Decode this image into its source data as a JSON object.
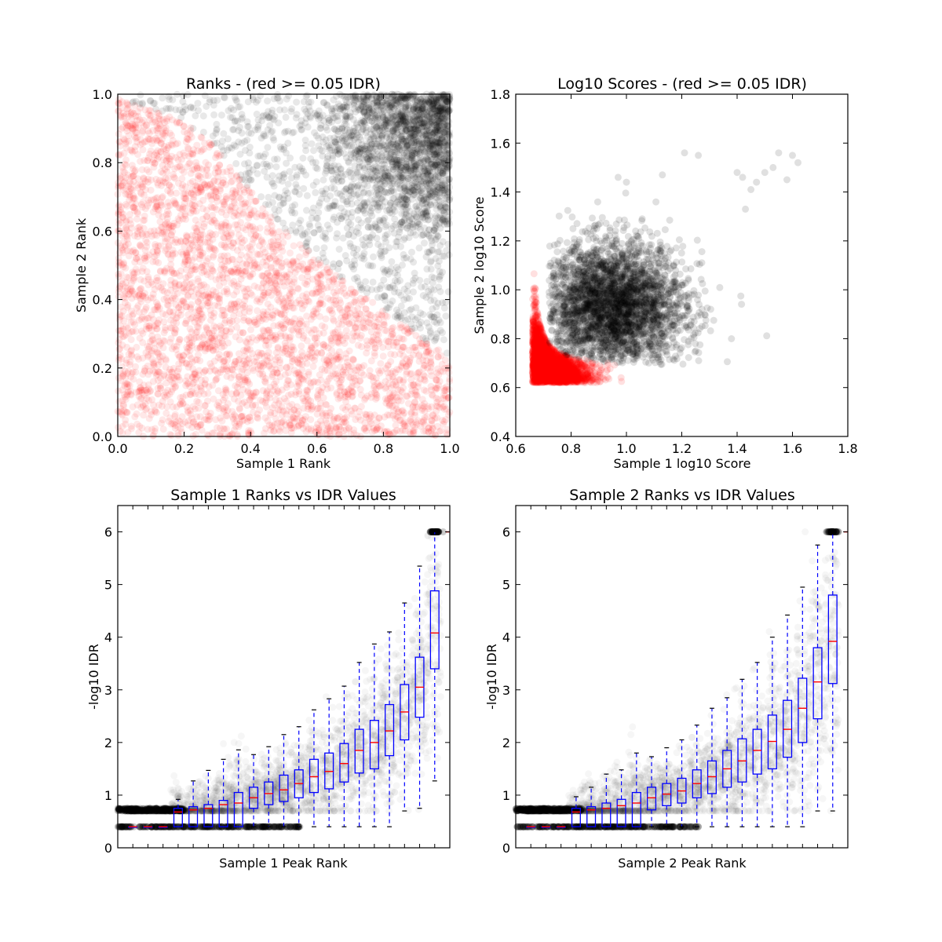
{
  "chart_data": [
    {
      "type": "scatter",
      "title": "Ranks - (red >= 0.05 IDR)",
      "xlabel": "Sample 1 Rank",
      "ylabel": "Sample 2 Rank",
      "xlim": [
        0.0,
        1.0
      ],
      "ylim": [
        0.0,
        1.0
      ],
      "xticks": [
        "0.0",
        "0.2",
        "0.4",
        "0.6",
        "0.8",
        "1.0"
      ],
      "yticks": [
        "0.0",
        "0.2",
        "0.4",
        "0.6",
        "0.8",
        "1.0"
      ],
      "colors": {
        "pass": "#ff0000",
        "fail": "#000000"
      },
      "boundary": [
        [
          0.0,
          0.99
        ],
        [
          0.2,
          0.92
        ],
        [
          0.3,
          0.84
        ],
        [
          0.4,
          0.72
        ],
        [
          0.5,
          0.61
        ],
        [
          0.6,
          0.52
        ],
        [
          0.7,
          0.44
        ],
        [
          0.8,
          0.37
        ],
        [
          0.9,
          0.3
        ],
        [
          1.0,
          0.23
        ]
      ],
      "grid": false
    },
    {
      "type": "scatter",
      "title": "Log10 Scores - (red >= 0.05 IDR)",
      "xlabel": "Sample 1 log10 Score",
      "ylabel": "Sample 2 log10 Score",
      "xlim": [
        0.6,
        1.8
      ],
      "ylim": [
        0.4,
        1.8
      ],
      "xticks": [
        "0.6",
        "0.8",
        "1.0",
        "1.2",
        "1.4",
        "1.6",
        "1.8"
      ],
      "yticks": [
        "0.4",
        "0.6",
        "0.8",
        "1.0",
        "1.2",
        "1.4",
        "1.6",
        "1.8"
      ],
      "colors": {
        "pass": "#ff0000",
        "fail": "#000000"
      },
      "outliers": [
        [
          1.21,
          1.56
        ],
        [
          1.26,
          1.55
        ],
        [
          1.42,
          1.46
        ],
        [
          1.45,
          1.41
        ],
        [
          1.47,
          1.44
        ],
        [
          1.5,
          1.48
        ],
        [
          1.53,
          1.5
        ],
        [
          1.55,
          1.56
        ],
        [
          1.58,
          1.45
        ],
        [
          1.6,
          1.55
        ],
        [
          1.62,
          1.52
        ],
        [
          1.43,
          1.33
        ],
        [
          1.4,
          1.48
        ],
        [
          1.0,
          1.44
        ],
        [
          1.13,
          1.47
        ],
        [
          0.97,
          1.46
        ]
      ],
      "grid": false
    },
    {
      "type": "box",
      "title": "Sample 1 Ranks vs IDR Values",
      "xlabel": "Sample 1 Peak Rank",
      "ylabel": "-log10 IDR",
      "ylim": [
        0,
        6.5
      ],
      "yticks": [
        "0",
        "1",
        "2",
        "3",
        "4",
        "5",
        "6"
      ],
      "colors": {
        "box": "#0000ff",
        "median": "#ff0000",
        "points": "#000000"
      },
      "boxes": [
        {
          "q1": 0.4,
          "med": 0.4,
          "q3": 0.4,
          "lo": 0.4,
          "hi": 0.4
        },
        {
          "q1": 0.4,
          "med": 0.4,
          "q3": 0.4,
          "lo": 0.4,
          "hi": 0.4
        },
        {
          "q1": 0.4,
          "med": 0.4,
          "q3": 0.4,
          "lo": 0.4,
          "hi": 0.4
        },
        {
          "q1": 0.4,
          "med": 0.68,
          "q3": 0.75,
          "lo": 0.4,
          "hi": 0.92
        },
        {
          "q1": 0.4,
          "med": 0.72,
          "q3": 0.78,
          "lo": 0.4,
          "hi": 1.27
        },
        {
          "q1": 0.4,
          "med": 0.75,
          "q3": 0.82,
          "lo": 0.4,
          "hi": 1.47
        },
        {
          "q1": 0.4,
          "med": 0.82,
          "q3": 0.9,
          "lo": 0.4,
          "hi": 1.68
        },
        {
          "q1": 0.4,
          "med": 0.85,
          "q3": 1.05,
          "lo": 0.4,
          "hi": 1.86
        },
        {
          "q1": 0.75,
          "med": 0.95,
          "q3": 1.15,
          "lo": 0.4,
          "hi": 1.77
        },
        {
          "q1": 0.82,
          "med": 1.03,
          "q3": 1.25,
          "lo": 0.4,
          "hi": 1.92
        },
        {
          "q1": 0.88,
          "med": 1.1,
          "q3": 1.38,
          "lo": 0.4,
          "hi": 2.15
        },
        {
          "q1": 0.95,
          "med": 1.22,
          "q3": 1.48,
          "lo": 0.4,
          "hi": 2.3
        },
        {
          "q1": 1.05,
          "med": 1.35,
          "q3": 1.68,
          "lo": 0.4,
          "hi": 2.62
        },
        {
          "q1": 1.12,
          "med": 1.45,
          "q3": 1.8,
          "lo": 0.4,
          "hi": 2.83
        },
        {
          "q1": 1.25,
          "med": 1.6,
          "q3": 1.98,
          "lo": 0.4,
          "hi": 3.07
        },
        {
          "q1": 1.42,
          "med": 1.85,
          "q3": 2.25,
          "lo": 0.4,
          "hi": 3.52
        },
        {
          "q1": 1.5,
          "med": 2.0,
          "q3": 2.42,
          "lo": 0.4,
          "hi": 3.87
        },
        {
          "q1": 1.75,
          "med": 2.22,
          "q3": 2.72,
          "lo": 0.4,
          "hi": 4.1
        },
        {
          "q1": 2.05,
          "med": 2.58,
          "q3": 3.1,
          "lo": 0.7,
          "hi": 4.65
        },
        {
          "q1": 2.48,
          "med": 3.05,
          "q3": 3.62,
          "lo": 0.75,
          "hi": 5.35
        },
        {
          "q1": 3.4,
          "med": 4.08,
          "q3": 4.88,
          "lo": 1.27,
          "hi": 6.0
        }
      ],
      "grid": false
    },
    {
      "type": "box",
      "title": "Sample 2 Ranks vs IDR Values",
      "xlabel": "Sample 2 Peak Rank",
      "ylabel": "-log10 IDR",
      "ylim": [
        0,
        6.5
      ],
      "yticks": [
        "0",
        "1",
        "2",
        "3",
        "4",
        "5",
        "6"
      ],
      "colors": {
        "box": "#0000ff",
        "median": "#ff0000",
        "points": "#000000"
      },
      "boxes": [
        {
          "q1": 0.4,
          "med": 0.4,
          "q3": 0.4,
          "lo": 0.4,
          "hi": 0.4
        },
        {
          "q1": 0.4,
          "med": 0.4,
          "q3": 0.4,
          "lo": 0.4,
          "hi": 0.4
        },
        {
          "q1": 0.4,
          "med": 0.4,
          "q3": 0.4,
          "lo": 0.4,
          "hi": 0.4
        },
        {
          "q1": 0.4,
          "med": 0.68,
          "q3": 0.75,
          "lo": 0.4,
          "hi": 0.97
        },
        {
          "q1": 0.4,
          "med": 0.72,
          "q3": 0.78,
          "lo": 0.4,
          "hi": 1.15
        },
        {
          "q1": 0.4,
          "med": 0.75,
          "q3": 0.85,
          "lo": 0.4,
          "hi": 1.4
        },
        {
          "q1": 0.4,
          "med": 0.8,
          "q3": 0.92,
          "lo": 0.4,
          "hi": 1.48
        },
        {
          "q1": 0.4,
          "med": 0.85,
          "q3": 1.05,
          "lo": 0.4,
          "hi": 1.8
        },
        {
          "q1": 0.72,
          "med": 0.95,
          "q3": 1.15,
          "lo": 0.4,
          "hi": 1.73
        },
        {
          "q1": 0.8,
          "med": 1.02,
          "q3": 1.22,
          "lo": 0.4,
          "hi": 1.9
        },
        {
          "q1": 0.85,
          "med": 1.08,
          "q3": 1.32,
          "lo": 0.4,
          "hi": 2.05
        },
        {
          "q1": 0.95,
          "med": 1.22,
          "q3": 1.48,
          "lo": 0.4,
          "hi": 2.33
        },
        {
          "q1": 1.03,
          "med": 1.35,
          "q3": 1.65,
          "lo": 0.4,
          "hi": 2.65
        },
        {
          "q1": 1.15,
          "med": 1.5,
          "q3": 1.85,
          "lo": 0.4,
          "hi": 2.85
        },
        {
          "q1": 1.25,
          "med": 1.65,
          "q3": 2.07,
          "lo": 0.4,
          "hi": 3.2
        },
        {
          "q1": 1.4,
          "med": 1.85,
          "q3": 2.25,
          "lo": 0.4,
          "hi": 3.52
        },
        {
          "q1": 1.5,
          "med": 2.02,
          "q3": 2.52,
          "lo": 0.4,
          "hi": 4.0
        },
        {
          "q1": 1.72,
          "med": 2.25,
          "q3": 2.8,
          "lo": 0.4,
          "hi": 4.42
        },
        {
          "q1": 2.0,
          "med": 2.65,
          "q3": 3.22,
          "lo": 0.4,
          "hi": 4.95
        },
        {
          "q1": 2.45,
          "med": 3.15,
          "q3": 3.8,
          "lo": 0.7,
          "hi": 5.75
        },
        {
          "q1": 3.12,
          "med": 3.92,
          "q3": 4.8,
          "lo": 0.7,
          "hi": 6.0
        }
      ],
      "grid": false
    }
  ]
}
